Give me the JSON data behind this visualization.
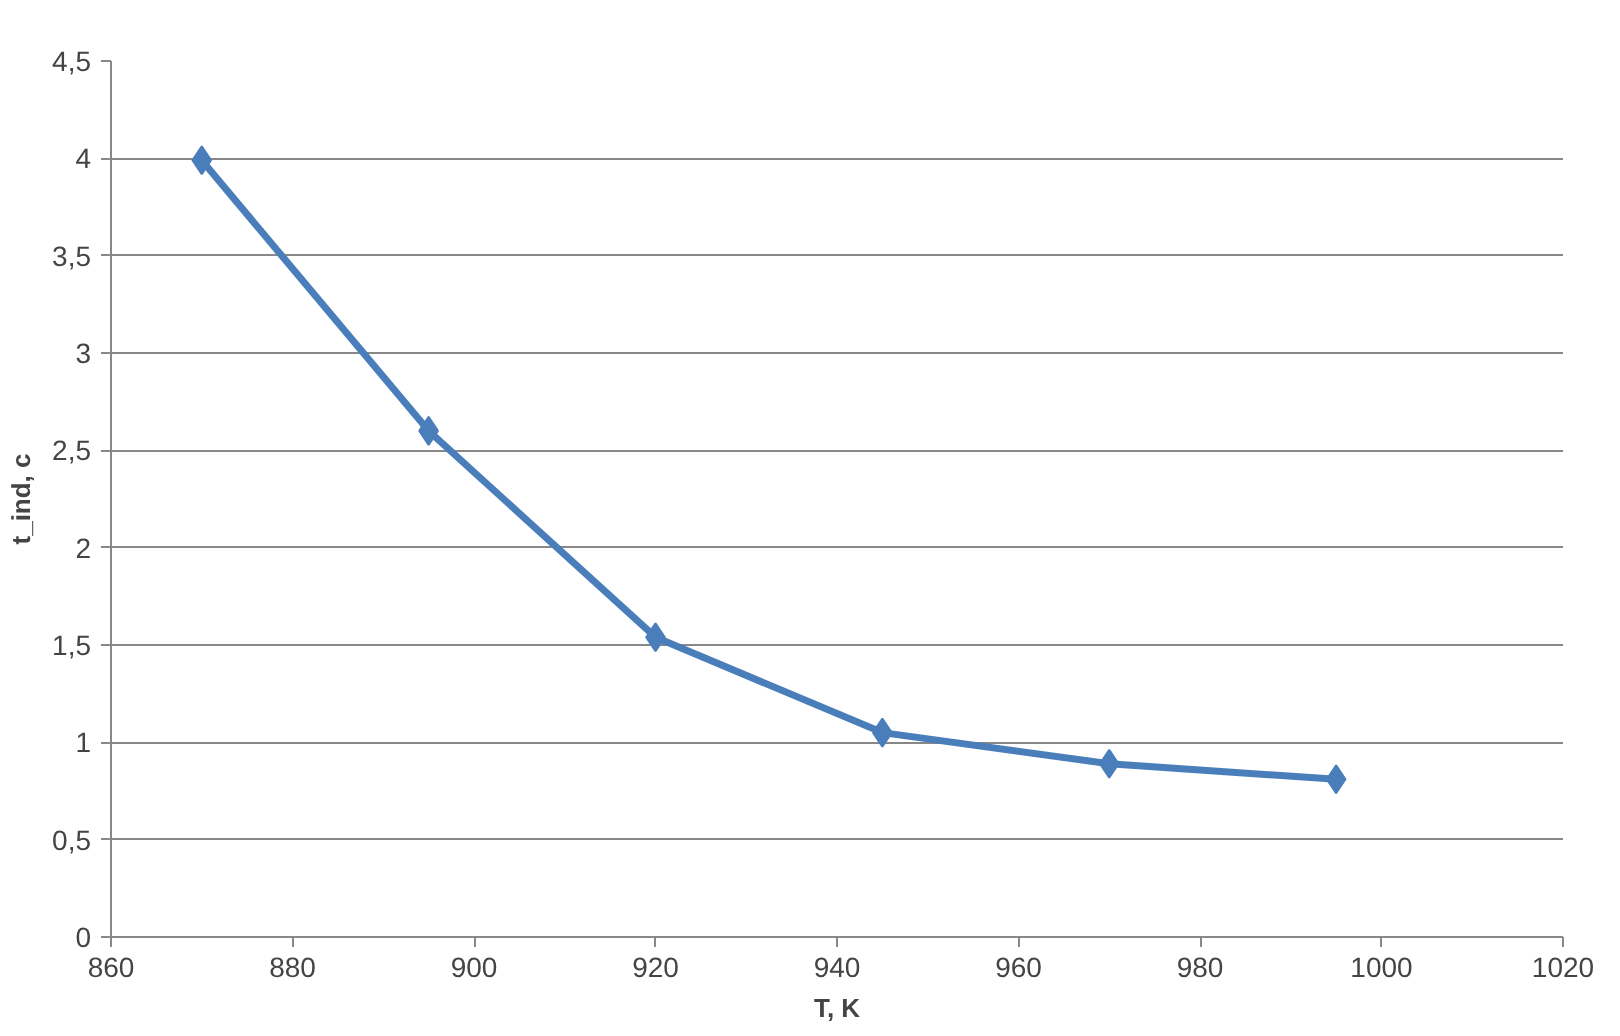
{
  "chart_data": {
    "type": "line",
    "xlabel": "T, K",
    "ylabel": "t_ind, c",
    "x": [
      870,
      895,
      920,
      945,
      970,
      995
    ],
    "series": [
      {
        "color": "#4a7ebb",
        "values": [
          3.99,
          2.6,
          1.54,
          1.05,
          0.89,
          0.81
        ]
      }
    ],
    "xlim": [
      860,
      1020
    ],
    "xticks": [
      860,
      880,
      900,
      920,
      940,
      960,
      980,
      1000,
      1020
    ],
    "ylim": [
      0,
      4.5
    ],
    "yticks": [
      0,
      {
        "value": 0.5,
        "label": "0,5"
      },
      1,
      {
        "value": 1.5,
        "label": "1,5"
      },
      2,
      {
        "value": 2.5,
        "label": "2,5"
      },
      3,
      {
        "value": 3.5,
        "label": "3,5"
      },
      4,
      {
        "value": 4.5,
        "label": "4,5"
      }
    ],
    "grid": "y",
    "marker": "diamond",
    "line_style": "solid"
  }
}
